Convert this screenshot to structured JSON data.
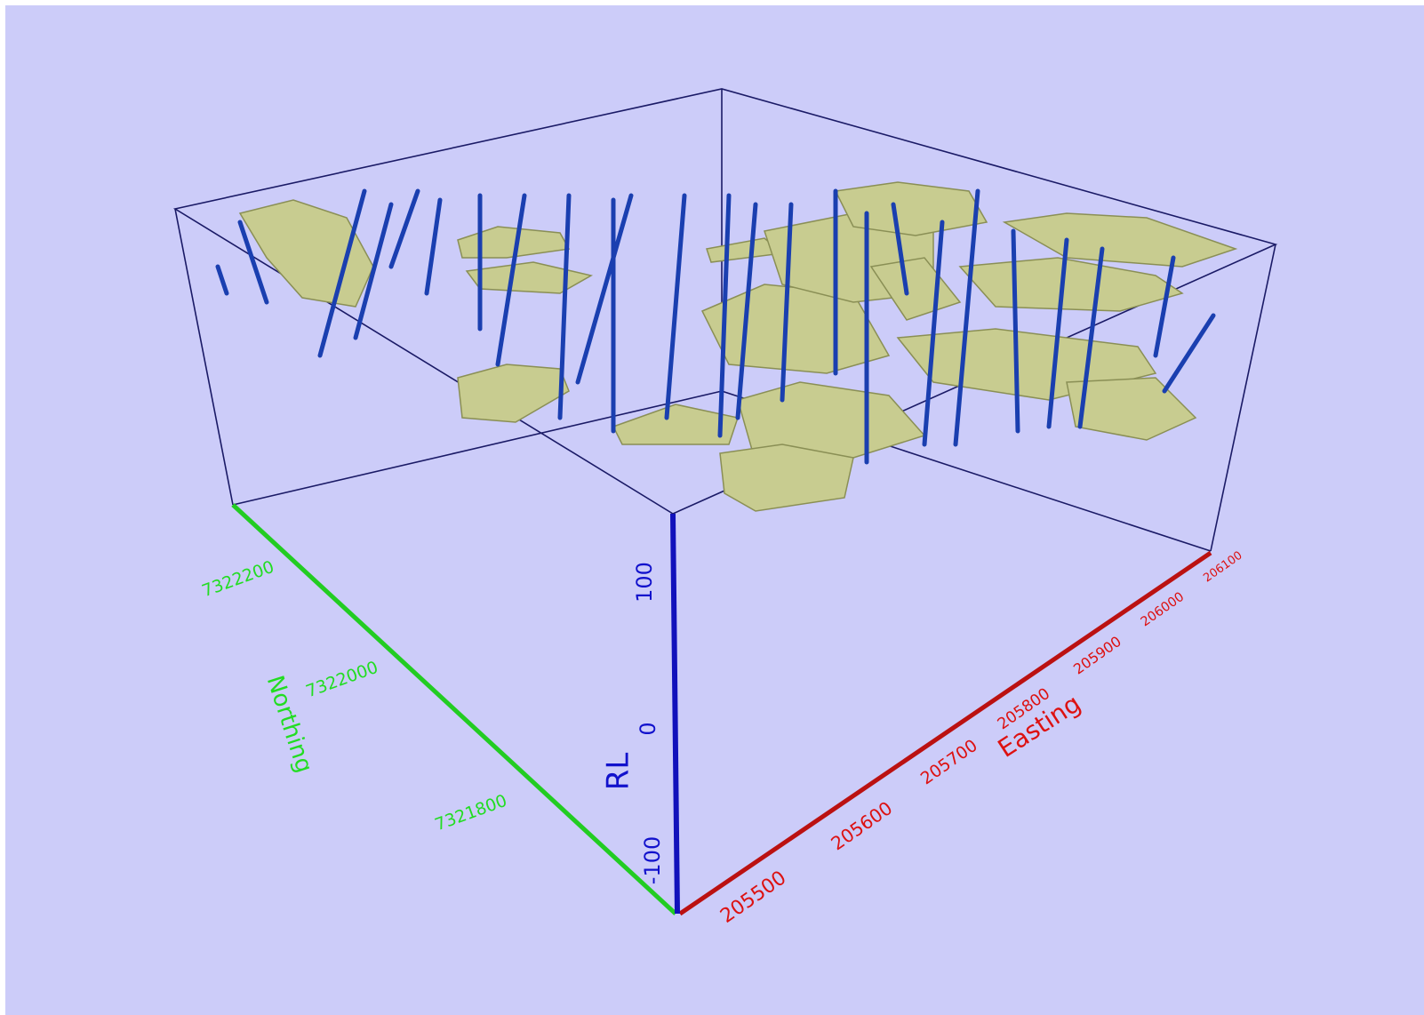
{
  "axes": {
    "northing": {
      "label": "Northing",
      "ticks": [
        7322200,
        7322000,
        7321800
      ]
    },
    "rl": {
      "label": "RL",
      "ticks": [
        100,
        0,
        -100
      ]
    },
    "easting": {
      "label": "Easting",
      "ticks": [
        205500,
        205600,
        205700,
        205800,
        205900,
        206000,
        206100
      ]
    }
  }
}
